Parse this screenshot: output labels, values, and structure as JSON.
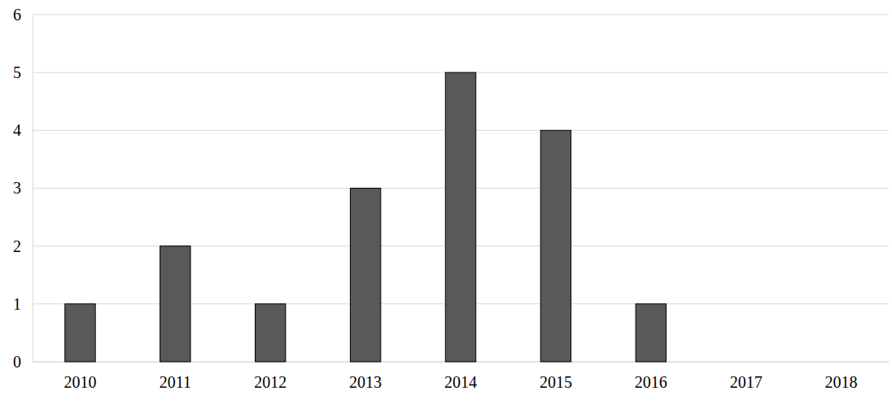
{
  "chart_data": {
    "type": "bar",
    "categories": [
      "2010",
      "2011",
      "2012",
      "2013",
      "2014",
      "2015",
      "2016",
      "2017",
      "2018"
    ],
    "values": [
      1,
      2,
      1,
      3,
      5,
      4,
      1,
      0,
      0
    ],
    "color": "#595959",
    "ylim": [
      0,
      6
    ],
    "yticks": [
      0,
      1,
      2,
      3,
      4,
      5,
      6
    ],
    "grid": true
  }
}
